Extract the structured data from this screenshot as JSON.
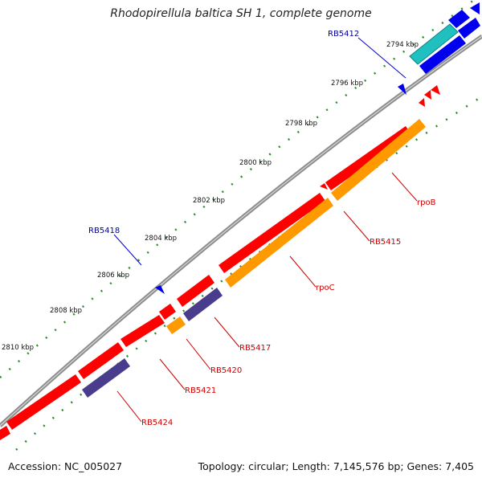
{
  "title": "Rhodopirellula baltica SH 1, complete genome",
  "footer": {
    "accession": "Accession: NC_005027",
    "stats": "Topology: circular; Length: 7,145,576 bp; Genes: 7,405"
  },
  "colors": {
    "backbone": "#8c8c8c",
    "gene_red": "#ff0000",
    "gene_orange": "#ff9900",
    "gene_slate": "#4a3c8c",
    "gene_blue": "#0000ee",
    "gene_cyan": "#20c0c0",
    "tick": "#2e8b2e",
    "label_red": "#cc0000",
    "label_blue": "#000099"
  },
  "scale_labels": [
    "2794 kbp",
    "2796 kbp",
    "2798 kbp",
    "2800 kbp",
    "2802 kbp",
    "2804 kbp",
    "2806 kbp",
    "2808 kbp",
    "2810 kbp"
  ],
  "gene_labels": [
    {
      "text": "RB5412",
      "color": "blue"
    },
    {
      "text": "RB5418",
      "color": "blue"
    },
    {
      "text": "rpoB",
      "color": "red"
    },
    {
      "text": "RB5415",
      "color": "red"
    },
    {
      "text": "rpoC",
      "color": "red"
    },
    {
      "text": "RB5417",
      "color": "red"
    },
    {
      "text": "RB5420",
      "color": "red"
    },
    {
      "text": "RB5421",
      "color": "red"
    },
    {
      "text": "RB5424",
      "color": "red"
    }
  ]
}
